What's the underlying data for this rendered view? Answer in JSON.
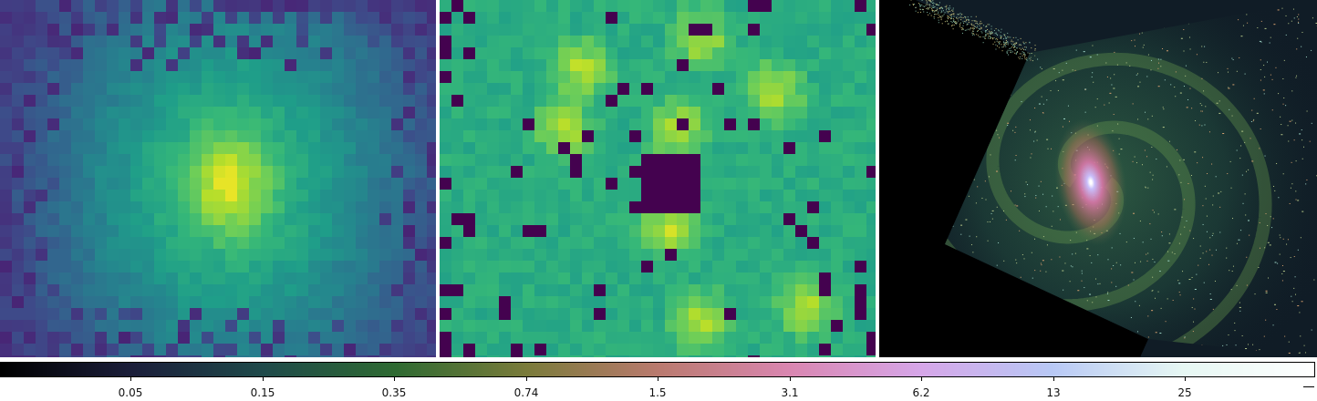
{
  "panels": [
    {
      "name": "left-map",
      "colormap": "viridis"
    },
    {
      "name": "middle-map",
      "colormap": "viridis"
    },
    {
      "name": "right-galaxy",
      "colormap": "cubehelix"
    }
  ],
  "colorbar": {
    "ticks": [
      "0.05",
      "0.15",
      "0.35",
      "0.74",
      "1.5",
      "3.1",
      "6.2",
      "13",
      "25"
    ],
    "colors": [
      "#000000",
      "#1b1e3a",
      "#1f4a4a",
      "#2e6a32",
      "#7a7b3a",
      "#b97a6e",
      "#d986b0",
      "#d6a6e8",
      "#b8c8f5",
      "#e6f7f3",
      "#ffffff"
    ]
  }
}
